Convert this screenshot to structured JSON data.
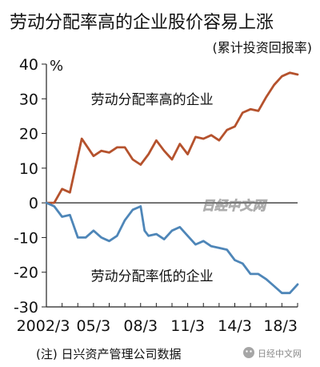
{
  "chart_data": {
    "type": "line",
    "title": "劳动分配率高的企业股价容易上涨",
    "subtitle": "(累计投资回报率)",
    "y_unit": "%",
    "ylim": [
      -30,
      40
    ],
    "yticks": [
      40,
      30,
      20,
      10,
      0,
      -10,
      -20,
      -30
    ],
    "x_ticks": [
      "2002/3",
      "05/3",
      "08/3",
      "11/3",
      "14/3",
      "18/3"
    ],
    "series": [
      {
        "name": "劳动分配率高的企业",
        "color": "#b5522d",
        "points": [
          {
            "x": "2002/3",
            "y": 0
          },
          {
            "x": "2002/9",
            "y": 0
          },
          {
            "x": "2003/3",
            "y": 4
          },
          {
            "x": "2003/9",
            "y": 3
          },
          {
            "x": "2004/6",
            "y": 18.5
          },
          {
            "x": "2005/3",
            "y": 13.5
          },
          {
            "x": "2005/9",
            "y": 15
          },
          {
            "x": "2006/3",
            "y": 14.5
          },
          {
            "x": "2006/9",
            "y": 16
          },
          {
            "x": "2007/3",
            "y": 16
          },
          {
            "x": "2007/9",
            "y": 12.5
          },
          {
            "x": "2008/3",
            "y": 11
          },
          {
            "x": "2008/9",
            "y": 14
          },
          {
            "x": "2009/3",
            "y": 18
          },
          {
            "x": "2009/9",
            "y": 15
          },
          {
            "x": "2010/3",
            "y": 12.5
          },
          {
            "x": "2010/9",
            "y": 17
          },
          {
            "x": "2011/3",
            "y": 14
          },
          {
            "x": "2011/9",
            "y": 19
          },
          {
            "x": "2012/3",
            "y": 18.5
          },
          {
            "x": "2012/9",
            "y": 19.5
          },
          {
            "x": "2013/3",
            "y": 18
          },
          {
            "x": "2013/9",
            "y": 21
          },
          {
            "x": "2014/3",
            "y": 22
          },
          {
            "x": "2014/9",
            "y": 26
          },
          {
            "x": "2015/3",
            "y": 27
          },
          {
            "x": "2015/9",
            "y": 26.5
          },
          {
            "x": "2016/3",
            "y": 30.5
          },
          {
            "x": "2016/9",
            "y": 34
          },
          {
            "x": "2017/3",
            "y": 36.5
          },
          {
            "x": "2017/9",
            "y": 37.5
          },
          {
            "x": "2018/3",
            "y": 37
          }
        ]
      },
      {
        "name": "劳动分配率低的企业",
        "color": "#4e86b8",
        "points": [
          {
            "x": "2002/3",
            "y": 0
          },
          {
            "x": "2002/9",
            "y": -1
          },
          {
            "x": "2003/3",
            "y": -4
          },
          {
            "x": "2003/9",
            "y": -3.5
          },
          {
            "x": "2004/3",
            "y": -10
          },
          {
            "x": "2004/9",
            "y": -10
          },
          {
            "x": "2005/3",
            "y": -8
          },
          {
            "x": "2005/9",
            "y": -10
          },
          {
            "x": "2006/3",
            "y": -11
          },
          {
            "x": "2006/9",
            "y": -9.5
          },
          {
            "x": "2007/3",
            "y": -5
          },
          {
            "x": "2007/9",
            "y": -2
          },
          {
            "x": "2008/3",
            "y": -1
          },
          {
            "x": "2008/6",
            "y": -8
          },
          {
            "x": "2008/9",
            "y": -9.5
          },
          {
            "x": "2009/3",
            "y": -9
          },
          {
            "x": "2009/9",
            "y": -10.5
          },
          {
            "x": "2010/3",
            "y": -8
          },
          {
            "x": "2010/9",
            "y": -7
          },
          {
            "x": "2011/3",
            "y": -9.5
          },
          {
            "x": "2011/9",
            "y": -12
          },
          {
            "x": "2012/3",
            "y": -11
          },
          {
            "x": "2012/9",
            "y": -12.5
          },
          {
            "x": "2013/3",
            "y": -13
          },
          {
            "x": "2013/9",
            "y": -13.5
          },
          {
            "x": "2014/3",
            "y": -16.5
          },
          {
            "x": "2014/9",
            "y": -17.5
          },
          {
            "x": "2015/3",
            "y": -20.5
          },
          {
            "x": "2015/9",
            "y": -20.5
          },
          {
            "x": "2016/3",
            "y": -22
          },
          {
            "x": "2016/9",
            "y": -24
          },
          {
            "x": "2017/3",
            "y": -26
          },
          {
            "x": "2017/9",
            "y": -26
          },
          {
            "x": "2018/3",
            "y": -23.5
          }
        ]
      }
    ],
    "grid": false,
    "legend": "inline labels"
  },
  "footnote": "(注) 日兴资产管理公司数据",
  "watermark": "日经中文网",
  "wechat_watermark": "日经中文网"
}
